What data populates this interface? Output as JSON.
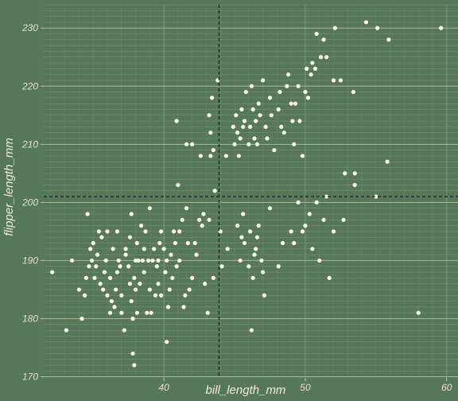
{
  "chart_data": {
    "type": "scatter",
    "xlabel": "bill_length_mm",
    "ylabel": "flipper_length_mm",
    "xlim": [
      31.5,
      60.8
    ],
    "ylim": [
      169.8,
      234.0
    ],
    "xticks": [
      40,
      50,
      60
    ],
    "yticks": [
      170,
      180,
      190,
      200,
      210,
      220,
      230
    ],
    "grid": true,
    "background_color": "#56775a",
    "point_color": "#fffbe6",
    "reference_line_color": "#111111",
    "reference_lines": {
      "x": 43.9,
      "y": 201.0
    },
    "points": [
      [
        32.1,
        188
      ],
      [
        33.1,
        178
      ],
      [
        33.5,
        190
      ],
      [
        34.0,
        185
      ],
      [
        34.2,
        180
      ],
      [
        34.4,
        184
      ],
      [
        34.5,
        187
      ],
      [
        34.6,
        198
      ],
      [
        34.7,
        189
      ],
      [
        34.8,
        192
      ],
      [
        34.9,
        190
      ],
      [
        35.0,
        193
      ],
      [
        35.1,
        187
      ],
      [
        35.2,
        189
      ],
      [
        35.3,
        191
      ],
      [
        35.4,
        195
      ],
      [
        35.5,
        186
      ],
      [
        35.6,
        194
      ],
      [
        35.7,
        185
      ],
      [
        35.8,
        188
      ],
      [
        35.9,
        190
      ],
      [
        36.0,
        195
      ],
      [
        36.0,
        184
      ],
      [
        36.2,
        187
      ],
      [
        36.2,
        181
      ],
      [
        36.3,
        183
      ],
      [
        36.4,
        192
      ],
      [
        36.5,
        182
      ],
      [
        36.6,
        185
      ],
      [
        36.7,
        188
      ],
      [
        36.7,
        195
      ],
      [
        36.8,
        190
      ],
      [
        36.9,
        189
      ],
      [
        37.0,
        184
      ],
      [
        37.0,
        181
      ],
      [
        37.2,
        178
      ],
      [
        37.3,
        192
      ],
      [
        37.3,
        191
      ],
      [
        37.5,
        189
      ],
      [
        37.6,
        186
      ],
      [
        37.6,
        194
      ],
      [
        37.7,
        183
      ],
      [
        37.7,
        198
      ],
      [
        37.8,
        174
      ],
      [
        37.8,
        180
      ],
      [
        37.9,
        172
      ],
      [
        37.9,
        187
      ],
      [
        38.0,
        190
      ],
      [
        38.0,
        185
      ],
      [
        38.1,
        181
      ],
      [
        38.1,
        193
      ],
      [
        38.2,
        190
      ],
      [
        38.3,
        186
      ],
      [
        38.4,
        196
      ],
      [
        38.5,
        190
      ],
      [
        38.6,
        192
      ],
      [
        38.6,
        188
      ],
      [
        38.7,
        195
      ],
      [
        38.8,
        181
      ],
      [
        38.9,
        190
      ],
      [
        39.0,
        185
      ],
      [
        39.0,
        199
      ],
      [
        39.1,
        181
      ],
      [
        39.2,
        190
      ],
      [
        39.3,
        192
      ],
      [
        39.4,
        184
      ],
      [
        39.5,
        189
      ],
      [
        39.6,
        190
      ],
      [
        39.6,
        186
      ],
      [
        39.7,
        193
      ],
      [
        39.8,
        184
      ],
      [
        39.8,
        195
      ],
      [
        40.0,
        192
      ],
      [
        40.1,
        188
      ],
      [
        40.2,
        190
      ],
      [
        40.2,
        176
      ],
      [
        40.3,
        182
      ],
      [
        40.4,
        185
      ],
      [
        40.5,
        191
      ],
      [
        40.6,
        187
      ],
      [
        40.7,
        195
      ],
      [
        40.8,
        193
      ],
      [
        40.9,
        189
      ],
      [
        41.0,
        203
      ],
      [
        41.1,
        195
      ],
      [
        41.1,
        190
      ],
      [
        41.3,
        197
      ],
      [
        41.4,
        182
      ],
      [
        41.5,
        184
      ],
      [
        41.6,
        199
      ],
      [
        41.7,
        193
      ],
      [
        41.8,
        185
      ],
      [
        42.0,
        187
      ],
      [
        42.2,
        193
      ],
      [
        42.3,
        191
      ],
      [
        42.5,
        197
      ],
      [
        42.7,
        196
      ],
      [
        42.8,
        198
      ],
      [
        42.9,
        186
      ],
      [
        43.1,
        181
      ],
      [
        43.2,
        197
      ],
      [
        43.3,
        208
      ],
      [
        43.5,
        187
      ],
      [
        43.6,
        202
      ],
      [
        44.0,
        195
      ],
      [
        44.1,
        189
      ],
      [
        44.5,
        192
      ],
      [
        45.2,
        196
      ],
      [
        45.4,
        190
      ],
      [
        45.5,
        194
      ],
      [
        45.6,
        198
      ],
      [
        45.7,
        193
      ],
      [
        46.0,
        189
      ],
      [
        46.1,
        195
      ],
      [
        46.2,
        178
      ],
      [
        46.3,
        187
      ],
      [
        46.4,
        191
      ],
      [
        46.5,
        192
      ],
      [
        46.6,
        194
      ],
      [
        46.7,
        196
      ],
      [
        46.9,
        190
      ],
      [
        47.0,
        188
      ],
      [
        47.1,
        184
      ],
      [
        47.5,
        199
      ],
      [
        48.1,
        189
      ],
      [
        48.4,
        193
      ],
      [
        49.0,
        195
      ],
      [
        49.2,
        193
      ],
      [
        49.5,
        200
      ],
      [
        49.8,
        195
      ],
      [
        50.0,
        196
      ],
      [
        50.3,
        198
      ],
      [
        50.5,
        192
      ],
      [
        50.8,
        200
      ],
      [
        51.0,
        190
      ],
      [
        51.3,
        197
      ],
      [
        51.5,
        201
      ],
      [
        51.7,
        187
      ],
      [
        52.0,
        195
      ],
      [
        52.7,
        197
      ],
      [
        53.5,
        203
      ],
      [
        55.0,
        201
      ],
      [
        58.0,
        181
      ],
      [
        40.9,
        214
      ],
      [
        41.6,
        210
      ],
      [
        42.0,
        210
      ],
      [
        42.6,
        208
      ],
      [
        43.2,
        215
      ],
      [
        43.3,
        212
      ],
      [
        43.4,
        218
      ],
      [
        43.5,
        209
      ],
      [
        43.8,
        221
      ],
      [
        44.4,
        208
      ],
      [
        44.9,
        213
      ],
      [
        45.0,
        210
      ],
      [
        45.1,
        215
      ],
      [
        45.2,
        212
      ],
      [
        45.3,
        208
      ],
      [
        45.4,
        211
      ],
      [
        45.5,
        216
      ],
      [
        45.6,
        213
      ],
      [
        45.7,
        214
      ],
      [
        45.8,
        219
      ],
      [
        46.0,
        210
      ],
      [
        46.1,
        213
      ],
      [
        46.2,
        220
      ],
      [
        46.3,
        216
      ],
      [
        46.4,
        211
      ],
      [
        46.5,
        214
      ],
      [
        46.6,
        210
      ],
      [
        46.7,
        217
      ],
      [
        46.8,
        215
      ],
      [
        47.0,
        221
      ],
      [
        47.2,
        213
      ],
      [
        47.3,
        211
      ],
      [
        47.5,
        218
      ],
      [
        47.6,
        215
      ],
      [
        47.8,
        209
      ],
      [
        48.1,
        216
      ],
      [
        48.2,
        219
      ],
      [
        48.3,
        213
      ],
      [
        48.5,
        212
      ],
      [
        48.7,
        220
      ],
      [
        48.8,
        222
      ],
      [
        49.0,
        217
      ],
      [
        49.1,
        214
      ],
      [
        49.2,
        210
      ],
      [
        49.3,
        217
      ],
      [
        49.5,
        220
      ],
      [
        49.6,
        214
      ],
      [
        49.8,
        208
      ],
      [
        50.0,
        219
      ],
      [
        50.1,
        223
      ],
      [
        50.2,
        218
      ],
      [
        50.4,
        222
      ],
      [
        50.5,
        224
      ],
      [
        50.7,
        223
      ],
      [
        50.8,
        229
      ],
      [
        51.1,
        225
      ],
      [
        51.3,
        228
      ],
      [
        51.5,
        225
      ],
      [
        52.0,
        221
      ],
      [
        52.1,
        230
      ],
      [
        52.5,
        221
      ],
      [
        53.4,
        219
      ],
      [
        54.3,
        231
      ],
      [
        55.1,
        230
      ],
      [
        55.9,
        228
      ],
      [
        59.6,
        230
      ],
      [
        55.8,
        207
      ],
      [
        53.5,
        205
      ],
      [
        52.8,
        205
      ]
    ]
  }
}
